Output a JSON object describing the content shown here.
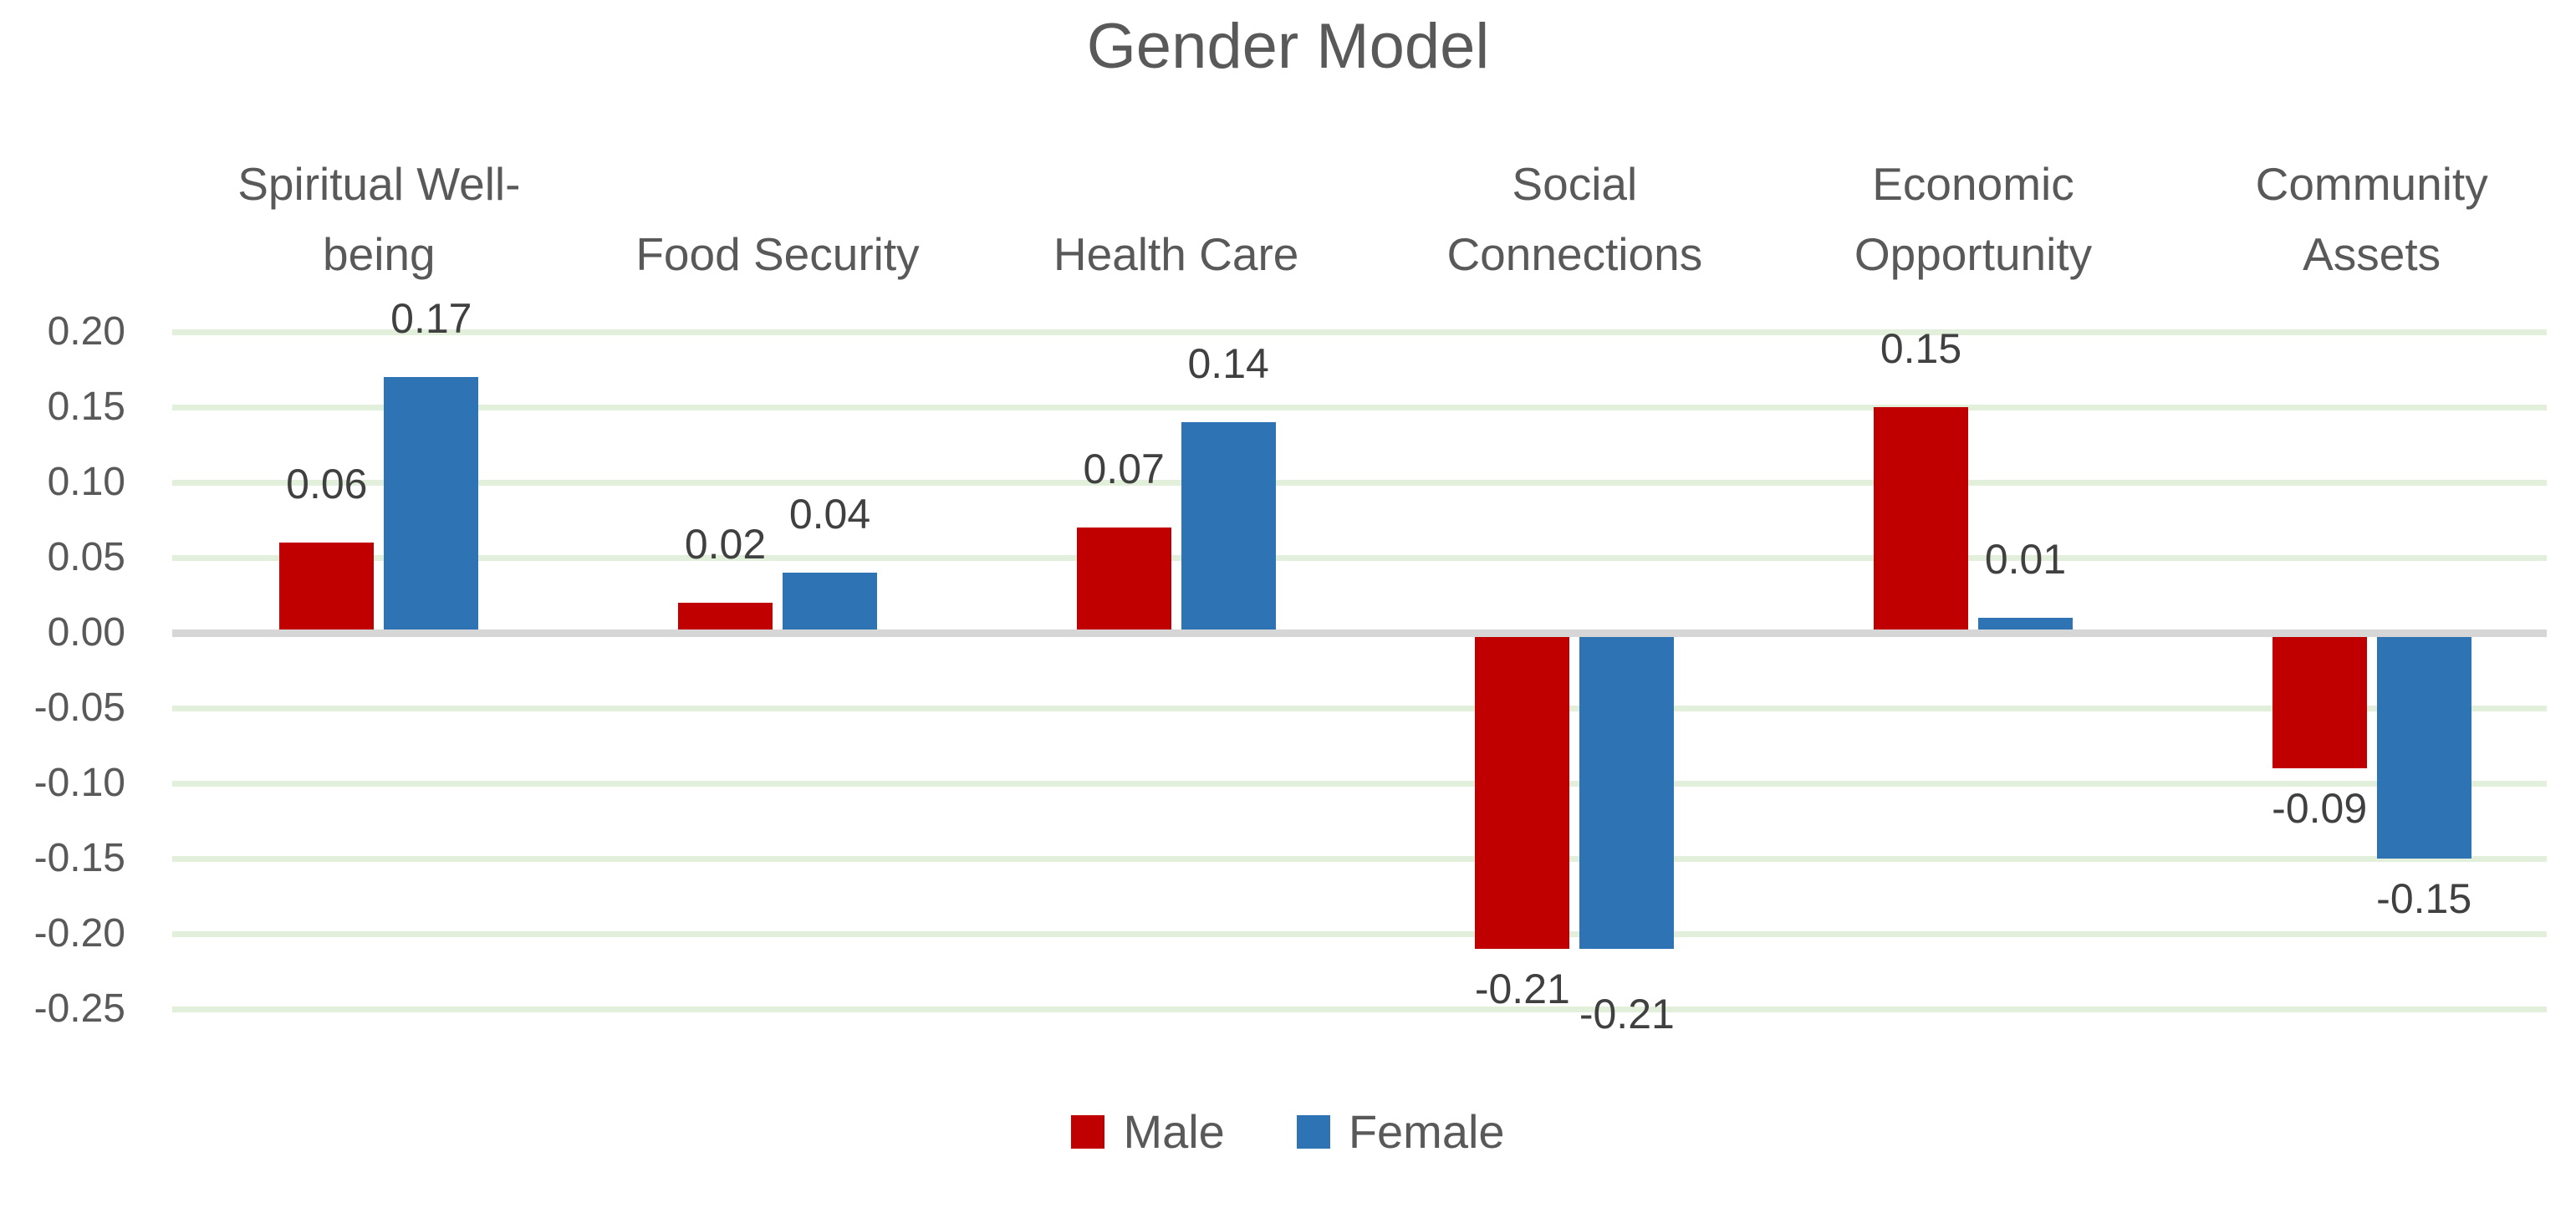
{
  "chart_data": {
    "type": "bar",
    "title": "Gender Model",
    "categories": [
      "Spiritual Well-being",
      "Food Security",
      "Health Care",
      "Social Connections",
      "Economic Opportunity",
      "Community Assets"
    ],
    "series": [
      {
        "name": "Male",
        "color": "#C00000",
        "values": [
          0.06,
          0.02,
          0.07,
          -0.21,
          0.15,
          -0.09
        ]
      },
      {
        "name": "Female",
        "color": "#2E74B5",
        "values": [
          0.17,
          0.04,
          0.14,
          -0.21,
          0.01,
          -0.15
        ]
      }
    ],
    "data_labels_visible": true,
    "data_label_decimals": 2,
    "y_axis": {
      "min": -0.25,
      "max": 0.2,
      "step": 0.05,
      "ticks": [
        0.2,
        0.15,
        0.1,
        0.05,
        0.0,
        -0.05,
        -0.1,
        -0.15,
        -0.2,
        -0.25
      ],
      "tick_labels": [
        "0.20",
        "0.15",
        "0.10",
        "0.05",
        "0.00",
        "-0.05",
        "-0.10",
        "-0.15",
        "-0.20",
        "-0.25"
      ]
    },
    "xlabel": "",
    "ylabel": "",
    "grid": true,
    "legend_position": "bottom",
    "colors": {
      "gridline": "#E2EFDA",
      "zero_line": "#D6D6D6",
      "title_text": "#595959",
      "axis_text": "#595959",
      "data_label_text": "#404040",
      "background": "#FFFFFF"
    }
  }
}
